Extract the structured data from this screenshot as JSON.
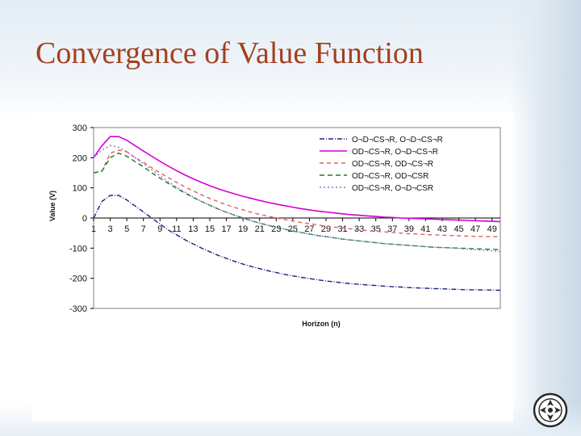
{
  "slide": {
    "title": "Convergence of Value Function"
  },
  "chart_data": {
    "type": "line",
    "title": "",
    "xlabel": "Horizon (n)",
    "ylabel": "Value (V)",
    "xlim": [
      1,
      50
    ],
    "ylim": [
      -300,
      300
    ],
    "yticks": [
      300,
      200,
      100,
      0,
      -100,
      -200,
      -300
    ],
    "xticks": [
      1,
      3,
      5,
      7,
      9,
      11,
      13,
      15,
      17,
      19,
      21,
      23,
      25,
      27,
      29,
      31,
      33,
      35,
      37,
      39,
      41,
      43,
      45,
      47,
      49
    ],
    "grid": false,
    "legend_position": "top-right",
    "x": [
      1,
      2,
      3,
      4,
      5,
      6,
      7,
      8,
      9,
      10,
      11,
      12,
      13,
      14,
      15,
      16,
      17,
      18,
      19,
      20,
      21,
      22,
      23,
      24,
      25,
      26,
      27,
      28,
      29,
      30,
      31,
      32,
      33,
      34,
      35,
      36,
      37,
      38,
      39,
      40,
      41,
      42,
      43,
      44,
      45,
      46,
      47,
      48,
      49,
      50
    ],
    "series": [
      {
        "name": "O¬D¬CS¬R, O¬D¬CS¬R",
        "color": "#1a237e",
        "dash": "6,2,1,2",
        "values": [
          0,
          55,
          75,
          75,
          60,
          40,
          20,
          0,
          -20,
          -40,
          -56,
          -72,
          -86,
          -100,
          -112,
          -124,
          -134,
          -144,
          -153,
          -161,
          -168,
          -175,
          -181,
          -187,
          -192,
          -197,
          -201,
          -205,
          -209,
          -212,
          -215,
          -218,
          -220,
          -222,
          -224,
          -226,
          -228,
          -229,
          -231,
          -232,
          -233,
          -234,
          -235,
          -236,
          -237,
          -238,
          -238,
          -239,
          -239,
          -240
        ]
      },
      {
        "name": "OD¬CS¬R, O¬D¬CS¬R",
        "color": "#d400d4",
        "dash": "",
        "values": [
          200,
          240,
          270,
          270,
          258,
          240,
          222,
          205,
          188,
          172,
          157,
          143,
          130,
          118,
          107,
          97,
          88,
          80,
          72,
          65,
          58,
          52,
          46,
          41,
          36,
          31,
          27,
          23,
          20,
          17,
          14,
          11,
          9,
          7,
          5,
          3,
          2,
          0,
          -1,
          -2,
          -3,
          -4,
          -5,
          -6,
          -7,
          -8,
          -9,
          -10,
          -11,
          -12
        ]
      },
      {
        "name": "OD¬CS¬R, OD¬CS¬R",
        "color": "#e06060",
        "dash": "5,4",
        "values": [
          150,
          155,
          215,
          225,
          220,
          200,
          185,
          167,
          150,
          134,
          118,
          103,
          90,
          77,
          65,
          54,
          44,
          35,
          27,
          19,
          12,
          6,
          0,
          -5,
          -10,
          -15,
          -19,
          -23,
          -27,
          -30,
          -33,
          -36,
          -39,
          -42,
          -44,
          -46,
          -48,
          -50,
          -52,
          -53,
          -55,
          -56,
          -57,
          -58,
          -59,
          -60,
          -61,
          -61,
          -62,
          -62
        ]
      },
      {
        "name": "OD¬CS¬R, OD¬CSR",
        "color": "#1e7a1e",
        "dash": "6,4",
        "values": [
          150,
          155,
          200,
          215,
          205,
          187,
          170,
          150,
          132,
          115,
          98,
          83,
          68,
          55,
          42,
          30,
          19,
          9,
          0,
          -9,
          -17,
          -24,
          -31,
          -37,
          -43,
          -48,
          -53,
          -58,
          -62,
          -66,
          -70,
          -73,
          -76,
          -79,
          -82,
          -85,
          -87,
          -89,
          -91,
          -93,
          -95,
          -97,
          -98,
          -99,
          -100,
          -101,
          -102,
          -103,
          -104,
          -105
        ]
      },
      {
        "name": "OD¬CS¬R, O¬D¬CSR",
        "color": "#7a7ad0",
        "dash": "2,3",
        "values": [
          200,
          225,
          240,
          235,
          220,
          200,
          180,
          160,
          140,
          120,
          102,
          86,
          70,
          55,
          42,
          30,
          19,
          9,
          0,
          -9,
          -17,
          -24,
          -31,
          -37,
          -43,
          -48,
          -53,
          -58,
          -62,
          -66,
          -70,
          -73,
          -76,
          -79,
          -82,
          -85,
          -87,
          -89,
          -91,
          -93,
          -95,
          -97,
          -98,
          -99,
          -101,
          -103,
          -105,
          -107,
          -109,
          -111
        ]
      }
    ]
  },
  "colors": {
    "title": "#a3401e"
  },
  "logo": {
    "icon": "university-seal-icon"
  }
}
